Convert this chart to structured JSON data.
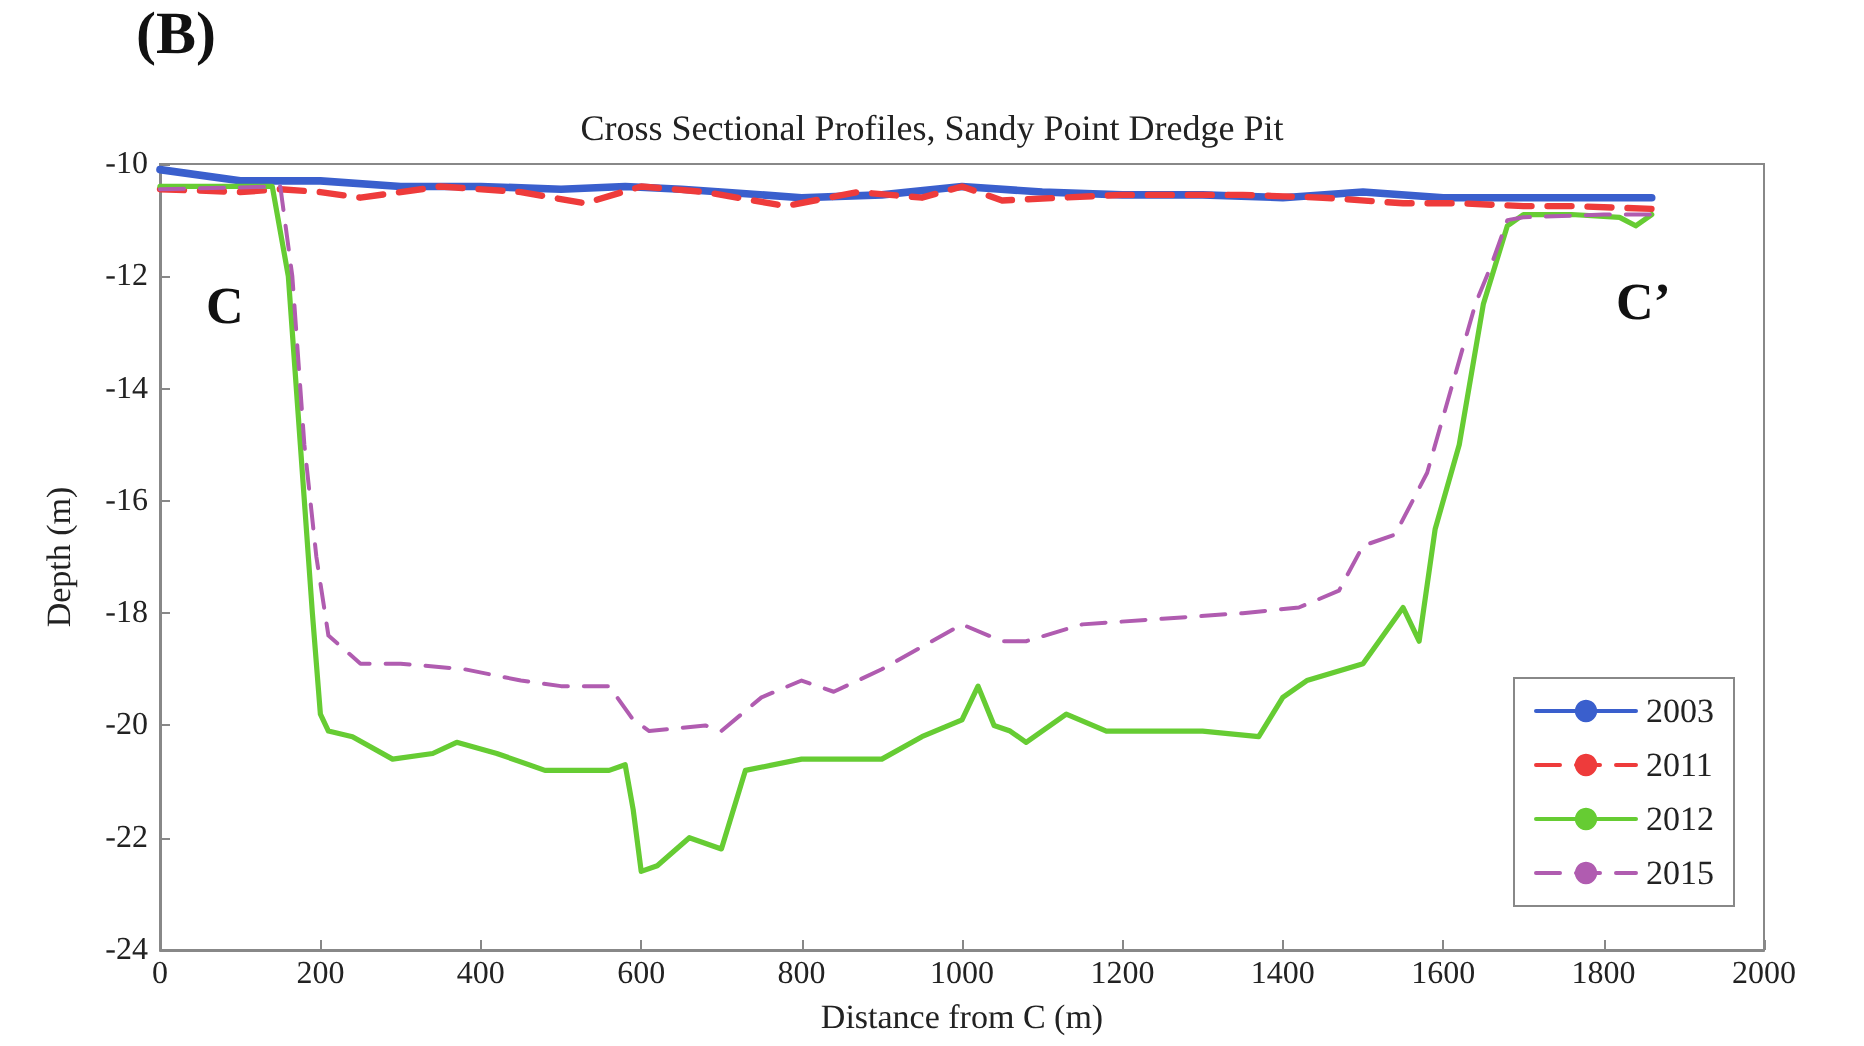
{
  "chart_data": {
    "type": "line",
    "title": "Cross Sectional Profiles, Sandy Point Dredge Pit",
    "xlabel": "Distance from C (m)",
    "ylabel": "Depth (m)",
    "annotations": [
      "(B)",
      "C",
      "C’"
    ],
    "xlim": [
      0,
      2000
    ],
    "xticks": [
      0,
      200,
      400,
      600,
      800,
      1000,
      1200,
      1400,
      1600,
      1800,
      2000
    ],
    "ylim": [
      -24,
      -10
    ],
    "yticks": [
      -24,
      -22,
      -20,
      -18,
      -16,
      -14,
      -12,
      -10
    ],
    "grid": false,
    "legend": "bottom right",
    "marker": "none",
    "series": [
      {
        "name": "2003",
        "color": "#3a5fcd",
        "line_style": "solid",
        "x": [
          0,
          100,
          150,
          200,
          300,
          400,
          500,
          580,
          650,
          700,
          800,
          900,
          1000,
          1100,
          1200,
          1300,
          1400,
          1500,
          1600,
          1700,
          1800,
          1860
        ],
        "values": [
          -10.1,
          -10.3,
          -10.3,
          -10.3,
          -10.4,
          -10.4,
          -10.45,
          -10.4,
          -10.45,
          -10.5,
          -10.6,
          -10.55,
          -10.4,
          -10.5,
          -10.55,
          -10.55,
          -10.6,
          -10.5,
          -10.6,
          -10.6,
          -10.6,
          -10.6
        ]
      },
      {
        "name": "2011",
        "color": "#ee3b3b",
        "line_style": "dashed",
        "x": [
          0,
          100,
          150,
          200,
          250,
          350,
          450,
          530,
          600,
          680,
          780,
          870,
          950,
          1000,
          1050,
          1200,
          1350,
          1450,
          1550,
          1620,
          1700,
          1760,
          1860
        ],
        "values": [
          -10.45,
          -10.5,
          -10.45,
          -10.5,
          -10.6,
          -10.4,
          -10.5,
          -10.7,
          -10.4,
          -10.5,
          -10.75,
          -10.5,
          -10.6,
          -10.4,
          -10.65,
          -10.55,
          -10.55,
          -10.6,
          -10.7,
          -10.7,
          -10.75,
          -10.75,
          -10.8
        ]
      },
      {
        "name": "2012",
        "color": "#66cc33",
        "line_style": "solid",
        "x": [
          0,
          100,
          140,
          160,
          175,
          190,
          200,
          210,
          240,
          290,
          340,
          370,
          420,
          480,
          560,
          580,
          590,
          600,
          620,
          660,
          700,
          730,
          800,
          900,
          950,
          1000,
          1020,
          1040,
          1060,
          1080,
          1130,
          1180,
          1250,
          1300,
          1370,
          1400,
          1430,
          1500,
          1550,
          1570,
          1590,
          1620,
          1650,
          1680,
          1700,
          1760,
          1820,
          1840,
          1860
        ],
        "values": [
          -10.4,
          -10.4,
          -10.4,
          -12,
          -15,
          -18,
          -19.8,
          -20.1,
          -20.2,
          -20.6,
          -20.5,
          -20.3,
          -20.5,
          -20.8,
          -20.8,
          -20.7,
          -21.5,
          -22.6,
          -22.5,
          -22,
          -22.2,
          -20.8,
          -20.6,
          -20.6,
          -20.2,
          -19.9,
          -19.3,
          -20,
          -20.1,
          -20.3,
          -19.8,
          -20.1,
          -20.1,
          -20.1,
          -20.2,
          -19.5,
          -19.2,
          -18.9,
          -17.9,
          -18.5,
          -16.5,
          -15,
          -12.5,
          -11.1,
          -10.9,
          -10.9,
          -10.95,
          -11.1,
          -10.9
        ]
      },
      {
        "name": "2015",
        "color": "#b05cb0",
        "line_style": "dashed",
        "x": [
          0,
          150,
          165,
          180,
          195,
          210,
          250,
          300,
          380,
          450,
          500,
          560,
          590,
          610,
          680,
          700,
          750,
          800,
          840,
          900,
          950,
          1000,
          1050,
          1080,
          1150,
          1250,
          1350,
          1420,
          1470,
          1500,
          1540,
          1580,
          1610,
          1640,
          1660,
          1680,
          1700,
          1800,
          1860
        ],
        "values": [
          -10.45,
          -10.4,
          -12,
          -15,
          -17,
          -18.4,
          -18.9,
          -18.9,
          -19,
          -19.2,
          -19.3,
          -19.3,
          -19.9,
          -20.1,
          -20,
          -20.1,
          -19.5,
          -19.2,
          -19.4,
          -19,
          -18.6,
          -18.2,
          -18.5,
          -18.5,
          -18.2,
          -18.1,
          -18,
          -17.9,
          -17.6,
          -16.8,
          -16.6,
          -15.5,
          -14,
          -12.5,
          -11.8,
          -11,
          -10.95,
          -10.9,
          -10.9
        ]
      }
    ]
  }
}
